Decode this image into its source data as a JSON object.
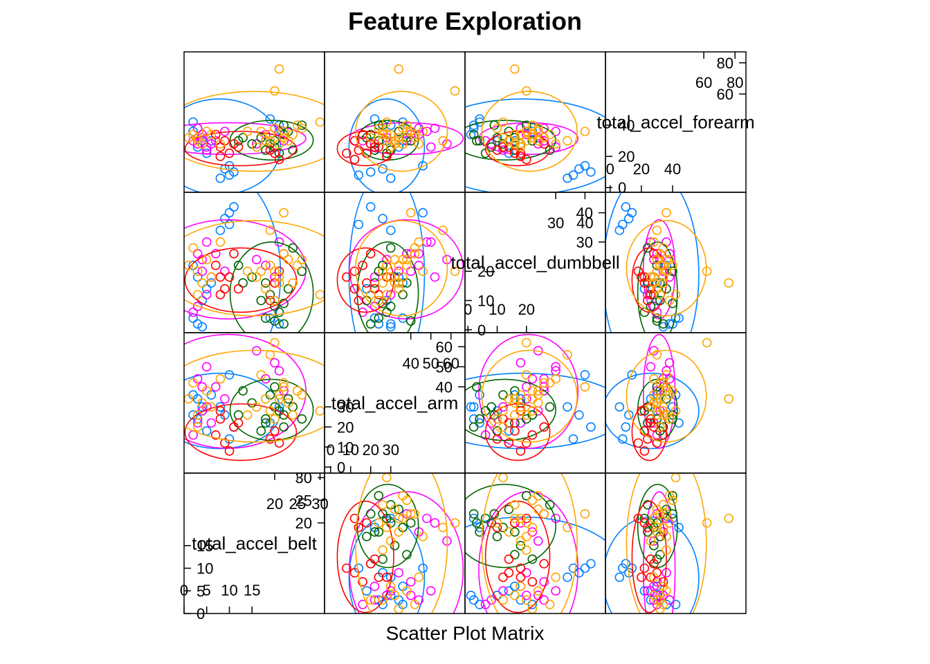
{
  "chart_data": {
    "type": "scatter",
    "title": "Feature Exploration",
    "xlabel": "Scatter Plot Matrix",
    "variables": [
      {
        "name": "total_accel_belt",
        "range": [
          0,
          31
        ],
        "ticks": [
          0,
          5,
          10,
          15,
          20,
          25,
          30
        ]
      },
      {
        "name": "total_accel_arm",
        "range": [
          -3,
          67
        ],
        "ticks": [
          0,
          10,
          20,
          30,
          40,
          50,
          60
        ]
      },
      {
        "name": "total_accel_dumbbell",
        "range": [
          -1,
          47
        ],
        "ticks": [
          0,
          10,
          20,
          30,
          40
        ]
      },
      {
        "name": "total_accel_forearm",
        "range": [
          -3,
          87
        ],
        "ticks": [
          0,
          20,
          40,
          60,
          80
        ]
      }
    ],
    "groups": [
      {
        "color": "#0080ff"
      },
      {
        "color": "#ff00ff"
      },
      {
        "color": "#006400"
      },
      {
        "color": "#ff0000"
      },
      {
        "color": "#ffa500"
      }
    ],
    "points": [
      [
        4,
        28,
        10,
        30
      ],
      [
        3,
        34,
        18,
        26
      ],
      [
        5,
        18,
        14,
        22
      ],
      [
        2,
        26,
        22,
        36
      ],
      [
        6,
        36,
        16,
        30
      ],
      [
        3,
        22,
        8,
        28
      ],
      [
        4,
        40,
        20,
        34
      ],
      [
        5,
        30,
        12,
        24
      ],
      [
        2,
        16,
        6,
        30
      ],
      [
        3,
        44,
        26,
        38
      ],
      [
        18,
        24,
        4,
        30
      ],
      [
        20,
        30,
        8,
        26
      ],
      [
        22,
        20,
        2,
        34
      ],
      [
        19,
        36,
        12,
        28
      ],
      [
        21,
        28,
        6,
        22
      ],
      [
        17,
        18,
        10,
        32
      ],
      [
        23,
        34,
        14,
        36
      ],
      [
        20,
        40,
        3,
        30
      ],
      [
        18,
        22,
        16,
        24
      ],
      [
        22,
        26,
        9,
        40
      ],
      [
        10,
        14,
        36,
        8
      ],
      [
        9,
        26,
        38,
        12
      ],
      [
        8,
        30,
        34,
        6
      ],
      [
        10,
        46,
        40,
        14
      ],
      [
        11,
        20,
        42,
        10
      ],
      [
        3,
        24,
        2,
        38
      ],
      [
        2,
        36,
        4,
        42
      ],
      [
        4,
        30,
        1,
        34
      ],
      [
        19,
        22,
        4,
        44
      ],
      [
        21,
        30,
        2,
        40
      ],
      [
        6,
        22,
        18,
        28
      ],
      [
        4,
        28,
        24,
        32
      ],
      [
        9,
        34,
        20,
        36
      ],
      [
        7,
        40,
        26,
        30
      ],
      [
        5,
        50,
        30,
        26
      ],
      [
        18,
        44,
        22,
        34
      ],
      [
        20,
        52,
        18,
        38
      ],
      [
        22,
        38,
        26,
        30
      ],
      [
        16,
        58,
        24,
        28
      ],
      [
        21,
        48,
        30,
        36
      ],
      [
        12,
        26,
        22,
        30
      ],
      [
        15,
        32,
        18,
        28
      ],
      [
        24,
        30,
        28,
        24
      ],
      [
        26,
        24,
        20,
        40
      ],
      [
        13,
        38,
        16,
        32
      ],
      [
        10,
        8,
        18,
        22
      ],
      [
        9,
        12,
        14,
        30
      ],
      [
        7,
        16,
        22,
        34
      ],
      [
        11,
        20,
        26,
        28
      ],
      [
        8,
        24,
        12,
        26
      ],
      [
        19,
        14,
        10,
        24
      ],
      [
        20,
        18,
        16,
        22
      ],
      [
        21,
        12,
        20,
        18
      ],
      [
        12,
        22,
        14,
        26
      ],
      [
        8,
        28,
        18,
        20
      ],
      [
        3,
        26,
        20,
        30
      ],
      [
        4,
        32,
        16,
        28
      ],
      [
        5,
        38,
        24,
        36
      ],
      [
        3,
        20,
        12,
        32
      ],
      [
        2,
        42,
        28,
        34
      ],
      [
        18,
        34,
        14,
        30
      ],
      [
        19,
        28,
        22,
        34
      ],
      [
        21,
        36,
        18,
        28
      ],
      [
        22,
        42,
        26,
        32
      ],
      [
        20,
        24,
        10,
        38
      ],
      [
        17,
        46,
        20,
        36
      ],
      [
        23,
        32,
        24,
        30
      ],
      [
        24,
        26,
        16,
        34
      ],
      [
        25,
        38,
        22,
        40
      ],
      [
        16,
        30,
        18,
        26
      ],
      [
        6,
        30,
        18,
        34
      ],
      [
        8,
        44,
        30,
        28
      ],
      [
        14,
        26,
        20,
        36
      ],
      [
        26,
        36,
        24,
        38
      ],
      [
        30,
        28,
        12,
        42
      ],
      [
        1,
        34,
        22,
        32
      ],
      [
        19,
        56,
        34,
        30
      ],
      [
        20,
        62,
        20,
        62
      ],
      [
        22,
        40,
        40,
        36
      ],
      [
        21,
        34,
        16,
        76
      ]
    ],
    "point_groups": [
      0,
      0,
      0,
      0,
      0,
      1,
      1,
      1,
      1,
      1,
      2,
      2,
      2,
      2,
      2,
      2,
      2,
      2,
      2,
      2,
      0,
      0,
      0,
      0,
      0,
      0,
      0,
      0,
      0,
      0,
      1,
      1,
      1,
      1,
      1,
      1,
      1,
      1,
      1,
      1,
      2,
      2,
      2,
      2,
      2,
      3,
      3,
      3,
      3,
      3,
      3,
      3,
      3,
      3,
      3,
      4,
      4,
      4,
      4,
      4,
      4,
      4,
      4,
      4,
      4,
      4,
      4,
      4,
      4,
      4,
      4,
      4,
      4,
      4,
      4,
      4,
      4,
      4,
      4,
      4
    ],
    "grid": false,
    "legend": "none"
  }
}
